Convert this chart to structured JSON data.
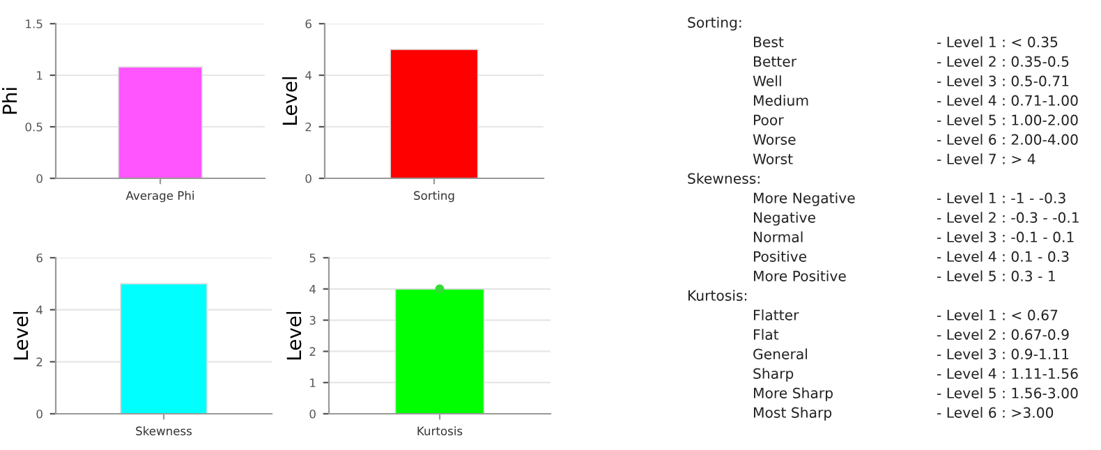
{
  "chart_data": [
    {
      "type": "bar",
      "ylabel": "Phi",
      "categories": [
        "Average Phi"
      ],
      "values": [
        1.08
      ],
      "color": "#ff55ff",
      "ylim": [
        0,
        1.5
      ],
      "yticks": [
        0,
        0.5,
        1,
        1.5
      ],
      "grid": "y"
    },
    {
      "type": "bar",
      "ylabel": "Level",
      "categories": [
        "Sorting"
      ],
      "values": [
        5
      ],
      "color": "#ff0000",
      "ylim": [
        0,
        6
      ],
      "yticks": [
        0,
        2,
        4,
        6
      ],
      "grid": "y"
    },
    {
      "type": "bar",
      "ylabel": "Level",
      "categories": [
        "Skewness"
      ],
      "values": [
        5
      ],
      "color": "#00ffff",
      "ylim": [
        0,
        6
      ],
      "yticks": [
        0,
        2,
        4,
        6
      ],
      "grid": "y"
    },
    {
      "type": "bar",
      "ylabel": "Level",
      "categories": [
        "Kurtosis"
      ],
      "ylim": [
        0,
        5
      ],
      "yticks": [
        0,
        1,
        2,
        3,
        4,
        5
      ],
      "grid": "y",
      "series": [
        {
          "type": "bar",
          "color": "#00ff00",
          "values": [
            4
          ]
        },
        {
          "type": "scatter",
          "color": "#33dd33",
          "x": [
            "Kurtosis"
          ],
          "values": [
            4
          ],
          "marker": "circle"
        }
      ]
    },
    {
      "type": "other",
      "title": "Sorting:",
      "categories": [
        "Best",
        "Better",
        "Well",
        "Medium",
        "Poor",
        "Worse",
        "Worst"
      ],
      "annotations": [
        "- Level 1 : < 0.35",
        "- Level 2 : 0.35-0.5",
        "- Level 3 : 0.5-0.71",
        "- Level 4 : 0.71-1.00",
        "- Level 5 : 1.00-2.00",
        "- Level 6 : 2.00-4.00",
        "- Level 7 : > 4"
      ]
    },
    {
      "type": "other",
      "title": "Skewness:",
      "categories": [
        "More Negative",
        "Negative",
        "Normal",
        "Positive",
        "More Positive"
      ],
      "annotations": [
        "- Level 1 : -1 - -0.3",
        "- Level 2 : -0.3 - -0.1",
        "- Level 3 : -0.1 - 0.1",
        "- Level 4 : 0.1 - 0.3",
        "- Level 5 : 0.3 - 1"
      ]
    },
    {
      "type": "other",
      "title": "Kurtosis:",
      "categories": [
        "Flatter",
        "Flat",
        "General",
        "Sharp",
        "More Sharp",
        "Most Sharp"
      ],
      "annotations": [
        "- Level 1 : < 0.67",
        "- Level 2 : 0.67-0.9",
        "- Level 3 : 0.9-1.11",
        "- Level 4 : 1.11-1.56",
        "- Level 5 : 1.56-3.00",
        "- Level 6 : >3.00"
      ]
    }
  ]
}
